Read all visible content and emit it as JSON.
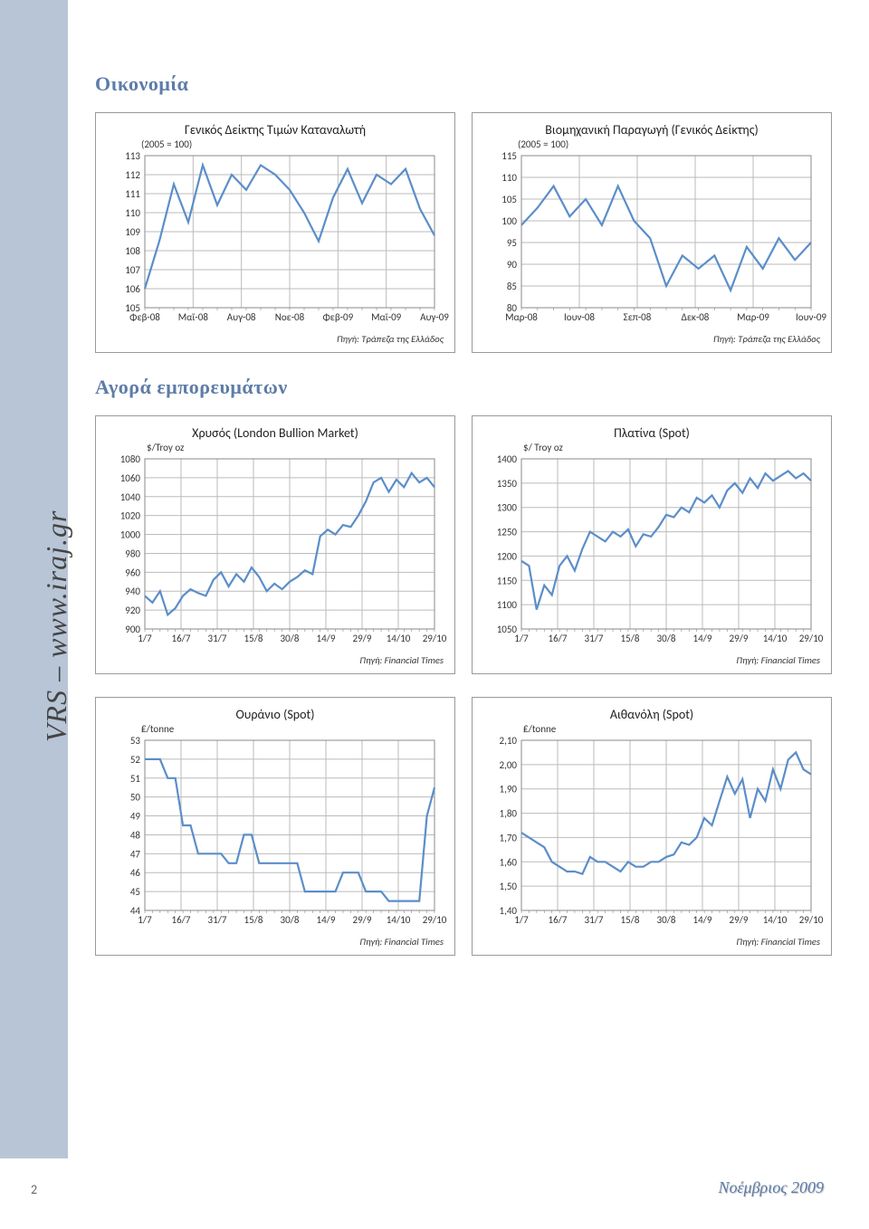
{
  "brand_vertical": "VRS – www.iraj.gr",
  "footer_page": "2",
  "footer_date": "Νοέμβριος 2009",
  "section1_title": "Οικονομία",
  "section2_title": "Αγορά εμπορευμάτων",
  "colors": {
    "series_blue": "#5b8ec9",
    "series_dark": "#3a6aa0",
    "grid": "#bbbbbb",
    "border": "#888888",
    "sidebar": "#b8c5d6"
  },
  "cpi_chart": {
    "title": "Γενικός Δείκτης Τιμών Καταναλωτή",
    "subtitle": "(2005 = 100)",
    "xlabels": [
      "Φεβ-08",
      "Μαϊ-08",
      "Αυγ-08",
      "Νοε-08",
      "Φεβ-09",
      "Μαϊ-09",
      "Αυγ-09"
    ],
    "ylim": [
      105,
      113
    ],
    "ytick_step": 1,
    "values": [
      106.0,
      108.5,
      111.5,
      109.5,
      112.5,
      110.4,
      112.0,
      111.2,
      112.5,
      112.0,
      111.2,
      110.0,
      108.5,
      110.8,
      112.3,
      110.5,
      112.0,
      111.5,
      112.3,
      110.2,
      108.8
    ],
    "source": "Πηγή: Τράπεζα της Ελλάδος"
  },
  "industrial_chart": {
    "title": "Βιομηχανική Παραγωγή (Γενικός Δείκτης)",
    "subtitle": "(2005 = 100)",
    "xlabels": [
      "Μαρ-08",
      "Ιουν-08",
      "Σεπ-08",
      "Δεκ-08",
      "Μαρ-09",
      "Ιουν-09"
    ],
    "ylim": [
      80,
      115
    ],
    "ytick_step": 5,
    "values": [
      99,
      103,
      108,
      101,
      105,
      99,
      108,
      100,
      96,
      85,
      92,
      89,
      92,
      84,
      94,
      89,
      96,
      91,
      95
    ],
    "source": "Πηγή: Τράπεζα της Ελλάδος"
  },
  "gold_chart": {
    "title": "Χρυσός (London Bullion Market)",
    "unit_label": "$/Troy oz",
    "xlabels": [
      "1/7",
      "16/7",
      "31/7",
      "15/8",
      "30/8",
      "14/9",
      "29/9",
      "14/10",
      "29/10"
    ],
    "ylim": [
      900,
      1080
    ],
    "ytick_step": 20,
    "values": [
      935,
      928,
      940,
      915,
      922,
      935,
      942,
      938,
      935,
      952,
      960,
      945,
      958,
      950,
      965,
      955,
      940,
      948,
      942,
      950,
      955,
      962,
      958,
      998,
      1005,
      1000,
      1010,
      1008,
      1020,
      1035,
      1055,
      1060,
      1045,
      1058,
      1050,
      1065,
      1055,
      1060,
      1050
    ],
    "source": "Πηγή: Financial Times"
  },
  "platinum_chart": {
    "title": "Πλατίνα (Spot)",
    "unit_label": "$/ Troy oz",
    "xlabels": [
      "1/7",
      "16/7",
      "31/7",
      "15/8",
      "30/8",
      "14/9",
      "29/9",
      "14/10",
      "29/10"
    ],
    "ylim": [
      1050,
      1400
    ],
    "ytick_step": 50,
    "values": [
      1190,
      1180,
      1090,
      1140,
      1120,
      1180,
      1200,
      1170,
      1215,
      1250,
      1240,
      1230,
      1250,
      1240,
      1255,
      1220,
      1245,
      1240,
      1260,
      1285,
      1280,
      1300,
      1290,
      1320,
      1310,
      1325,
      1300,
      1335,
      1350,
      1330,
      1360,
      1340,
      1370,
      1355,
      1365,
      1375,
      1360,
      1370,
      1355
    ],
    "source": "Πηγή: Financial Times"
  },
  "uranium_chart": {
    "title": "Ουράνιο (Spot)",
    "unit_label": "₤/tonne",
    "xlabels": [
      "1/7",
      "16/7",
      "31/7",
      "15/8",
      "30/8",
      "14/9",
      "29/9",
      "14/10",
      "29/10"
    ],
    "ylim": [
      44,
      53
    ],
    "ytick_step": 1,
    "values": [
      52,
      52,
      52,
      51,
      51,
      48.5,
      48.5,
      47,
      47,
      47,
      47,
      46.5,
      46.5,
      48,
      48,
      46.5,
      46.5,
      46.5,
      46.5,
      46.5,
      46.5,
      45,
      45,
      45,
      45,
      45,
      46,
      46,
      46,
      45,
      45,
      45,
      44.5,
      44.5,
      44.5,
      44.5,
      44.5,
      49,
      50.5
    ],
    "source": "Πηγή: Financial Times"
  },
  "ethanol_chart": {
    "title": "Αιθανόλη (Spot)",
    "unit_label": "₤/tonne",
    "xlabels": [
      "1/7",
      "16/7",
      "31/7",
      "15/8",
      "30/8",
      "14/9",
      "29/9",
      "14/10",
      "29/10"
    ],
    "ylim": [
      1.4,
      2.1
    ],
    "ytick_step": 0.1,
    "y_decimals": 2,
    "values": [
      1.72,
      1.7,
      1.68,
      1.66,
      1.6,
      1.58,
      1.56,
      1.56,
      1.55,
      1.62,
      1.6,
      1.6,
      1.58,
      1.56,
      1.6,
      1.58,
      1.58,
      1.6,
      1.6,
      1.62,
      1.63,
      1.68,
      1.67,
      1.7,
      1.78,
      1.75,
      1.85,
      1.95,
      1.88,
      1.94,
      1.78,
      1.9,
      1.85,
      1.98,
      1.9,
      2.02,
      2.05,
      1.98,
      1.96
    ],
    "source": "Πηγή: Financial Times"
  }
}
